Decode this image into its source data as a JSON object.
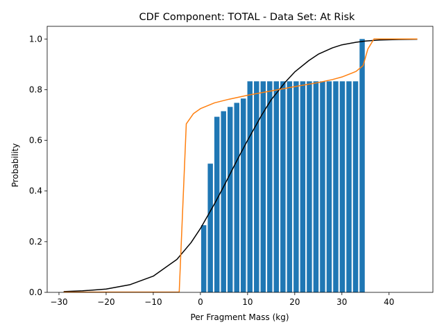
{
  "chart_data": {
    "type": "bar",
    "title": "CDF Component: TOTAL - Data Set: At Risk",
    "xlabel": "Per Fragment Mass (kg)",
    "ylabel": "Probability",
    "xlim": [
      -32.5,
      49.3
    ],
    "ylim": [
      0,
      1.05
    ],
    "xticks": [
      -30,
      -20,
      -10,
      0,
      10,
      20,
      30,
      40
    ],
    "yticks": [
      0.0,
      0.2,
      0.4,
      0.6,
      0.8,
      1.0
    ],
    "xtick_labels": [
      "−30",
      "−20",
      "−10",
      "0",
      "10",
      "20",
      "30",
      "40"
    ],
    "ytick_labels": [
      "0.0",
      "0.2",
      "0.4",
      "0.6",
      "0.8",
      "1.0"
    ],
    "grid": false,
    "legend": "none",
    "bar_width": 1.1,
    "bars": {
      "x": [
        0.7,
        2.1,
        3.5,
        4.9,
        6.3,
        7.7,
        9.1,
        10.5,
        11.9,
        13.3,
        14.7,
        16.1,
        17.5,
        18.9,
        20.3,
        21.7,
        23.1,
        24.5,
        25.9,
        27.3,
        28.7,
        30.1,
        31.5,
        32.9,
        34.3
      ],
      "values": [
        0.265,
        0.508,
        0.693,
        0.715,
        0.732,
        0.748,
        0.765,
        0.833,
        0.833,
        0.833,
        0.833,
        0.833,
        0.833,
        0.833,
        0.833,
        0.833,
        0.833,
        0.833,
        0.833,
        0.833,
        0.833,
        0.833,
        0.833,
        0.833,
        1.0
      ],
      "color": "#1f77b4"
    },
    "lines": [
      {
        "color": "#000000",
        "x": [
          -29,
          -25,
          -20,
          -15,
          -10,
          -5,
          -2,
          0,
          3,
          5,
          8,
          10,
          13,
          15,
          18,
          20,
          23,
          25,
          28,
          30,
          33,
          35,
          38,
          42,
          46
        ],
        "y": [
          0.003,
          0.006,
          0.013,
          0.03,
          0.064,
          0.13,
          0.196,
          0.252,
          0.35,
          0.42,
          0.53,
          0.6,
          0.7,
          0.76,
          0.83,
          0.87,
          0.915,
          0.94,
          0.965,
          0.977,
          0.987,
          0.992,
          0.996,
          0.998,
          0.999
        ]
      },
      {
        "color": "#ff7f0e",
        "x": [
          -29,
          -10,
          -4.5,
          -3,
          -1.5,
          0,
          3,
          6,
          10,
          15,
          20,
          25,
          28,
          30,
          33,
          34.5,
          35.5,
          36.8,
          40,
          46
        ],
        "y": [
          0.001,
          0.001,
          0.001,
          0.665,
          0.705,
          0.725,
          0.748,
          0.762,
          0.778,
          0.795,
          0.812,
          0.828,
          0.84,
          0.85,
          0.872,
          0.895,
          0.96,
          1.0,
          1.0,
          1.0
        ]
      }
    ]
  }
}
